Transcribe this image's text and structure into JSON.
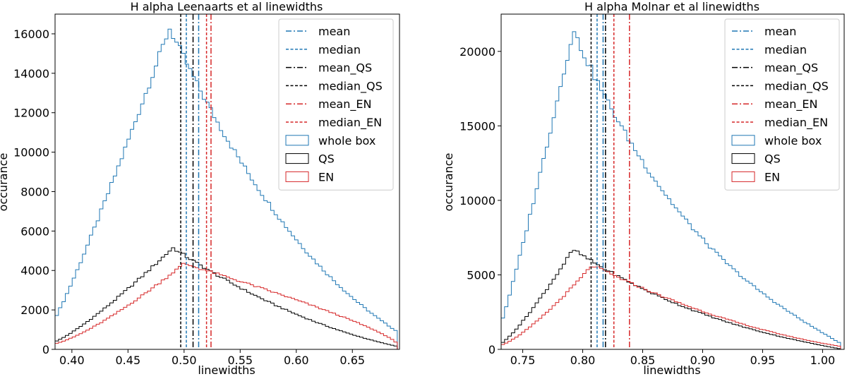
{
  "chart_data": [
    {
      "type": "histogram",
      "title": "H alpha Leenaarts et al linewidths",
      "xlabel": "linewidths",
      "ylabel": "occurance",
      "xlim": [
        0.385,
        0.692
      ],
      "ylim": [
        0,
        17000
      ],
      "xticks": [
        0.4,
        0.45,
        0.5,
        0.55,
        0.6,
        0.65
      ],
      "xtick_labels": [
        "0.40",
        "0.45",
        "0.50",
        "0.55",
        "0.60",
        "0.65"
      ],
      "yticks": [
        0,
        2000,
        4000,
        6000,
        8000,
        10000,
        12000,
        14000,
        16000
      ],
      "ytick_labels": [
        "0",
        "2000",
        "4000",
        "6000",
        "8000",
        "10000",
        "12000",
        "14000",
        "16000"
      ],
      "legend_position": "upper right",
      "legend": [
        "mean",
        "median",
        "mean_QS",
        "median_QS",
        "mean_EN",
        "median_EN",
        "whole box",
        "QS",
        "EN"
      ],
      "hist_peaks": [
        {
          "name": "whole box",
          "x_start": 0.385,
          "x_peak": 0.487,
          "x_end": 0.69,
          "y_start": 1600,
          "y_peak": 16300,
          "y_end": 900,
          "rise_curve": 1.1,
          "fall_curve": 0.45
        },
        {
          "name": "QS",
          "x_start": 0.385,
          "x_peak": 0.49,
          "x_end": 0.69,
          "y_start": 400,
          "y_peak": 5150,
          "y_end": 150,
          "rise_curve": 1.2,
          "fall_curve": 0.5
        },
        {
          "name": "EN",
          "x_start": 0.385,
          "x_peak": 0.5,
          "x_end": 0.69,
          "y_start": 300,
          "y_peak": 4350,
          "y_end": 250,
          "rise_curve": 1.3,
          "fall_curve": 1.6
        }
      ],
      "vlines": [
        {
          "name": "mean",
          "x": 0.513,
          "color": "#1f77b4",
          "style": "dashdot"
        },
        {
          "name": "median",
          "x": 0.502,
          "color": "#1f77b4",
          "style": "dashed"
        },
        {
          "name": "mean_QS",
          "x": 0.508,
          "color": "#000000",
          "style": "dashdot"
        },
        {
          "name": "median_QS",
          "x": 0.497,
          "color": "#000000",
          "style": "dashed"
        },
        {
          "name": "mean_EN",
          "x": 0.524,
          "color": "#d62728",
          "style": "dashdot"
        },
        {
          "name": "median_EN",
          "x": 0.52,
          "color": "#d62728",
          "style": "dashed"
        }
      ]
    },
    {
      "type": "histogram",
      "title": "H alpha Molnar et al linewidths",
      "xlabel": "linewidths",
      "ylabel": "occurance",
      "xlim": [
        0.732,
        1.018
      ],
      "ylim": [
        0,
        22500
      ],
      "xticks": [
        0.75,
        0.8,
        0.85,
        0.9,
        0.95,
        1.0
      ],
      "xtick_labels": [
        "0.75",
        "0.80",
        "0.85",
        "0.90",
        "0.95",
        "1.00"
      ],
      "yticks": [
        0,
        5000,
        10000,
        15000,
        20000
      ],
      "ytick_labels": [
        "0",
        "5000",
        "10000",
        "15000",
        "20000"
      ],
      "legend_position": "upper right",
      "legend": [
        "mean",
        "median",
        "mean_QS",
        "median_QS",
        "mean_EN",
        "median_EN",
        "whole box",
        "QS",
        "EN"
      ],
      "hist_peaks": [
        {
          "name": "whole box",
          "x_start": 0.732,
          "x_peak": 0.792,
          "x_end": 1.015,
          "y_start": 1800,
          "y_peak": 21400,
          "y_end": 400,
          "rise_curve": 1.1,
          "fall_curve": 0.35
        },
        {
          "name": "QS",
          "x_start": 0.732,
          "x_peak": 0.792,
          "x_end": 1.015,
          "y_start": 400,
          "y_peak": 6700,
          "y_end": 30,
          "rise_curve": 1.2,
          "fall_curve": 0.4
        },
        {
          "name": "EN",
          "x_start": 0.732,
          "x_peak": 0.808,
          "x_end": 1.015,
          "y_start": 300,
          "y_peak": 5650,
          "y_end": 200,
          "rise_curve": 1.3,
          "fall_curve": 0.5
        }
      ],
      "vlines": [
        {
          "name": "mean",
          "x": 0.817,
          "color": "#1f77b4",
          "style": "dashdot"
        },
        {
          "name": "median",
          "x": 0.812,
          "color": "#1f77b4",
          "style": "dashed"
        },
        {
          "name": "mean_QS",
          "x": 0.819,
          "color": "#000000",
          "style": "dashdot"
        },
        {
          "name": "median_QS",
          "x": 0.807,
          "color": "#000000",
          "style": "dashed"
        },
        {
          "name": "mean_EN",
          "x": 0.839,
          "color": "#d62728",
          "style": "dashdot"
        },
        {
          "name": "median_EN",
          "x": 0.826,
          "color": "#d62728",
          "style": "dashed"
        }
      ]
    }
  ],
  "colors": {
    "whole box": "#1f77b4",
    "QS": "#000000",
    "EN": "#d62728"
  }
}
